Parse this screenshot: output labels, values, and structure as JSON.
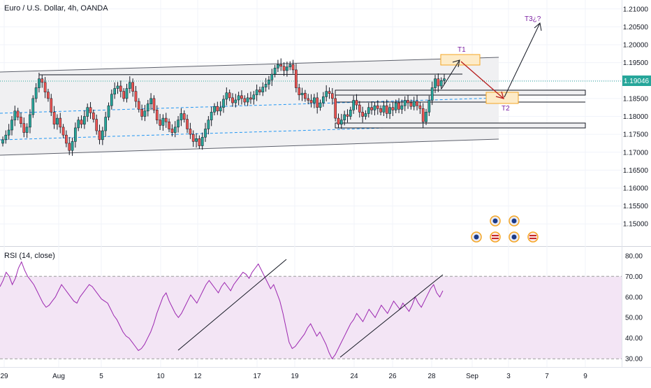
{
  "header": {
    "title": "Euro / U.S. Dollar, 4h, OANDA"
  },
  "price_badge": "1.19046",
  "rsi_title": "RSI (14, close)",
  "targets": {
    "t1": "T1",
    "t2": "T2",
    "t3": "T3¿?"
  },
  "colors": {
    "up": "#26a69a",
    "down": "#ef5350",
    "price_line": "#26a69a",
    "channel": "#5d606b",
    "channel_fill": "#f0f0f2",
    "rsi_line": "#9c27b0",
    "rsi_band": "#f3e5f5",
    "target_box": "#f5a623",
    "target_text": "#7b1fa2",
    "arrow_red": "#b71c1c",
    "dashed": "#2196f3"
  },
  "chart_data": [
    {
      "type": "candlestick",
      "title": "Euro / U.S. Dollar, 4h, OANDA",
      "interval": "4h",
      "ylim": [
        1.1438,
        1.2125
      ],
      "y_ticks": [
        "1.21000",
        "1.20500",
        "1.20000",
        "1.19500",
        "1.19000",
        "1.18500",
        "1.18000",
        "1.17500",
        "1.17000",
        "1.16500",
        "1.16000",
        "1.15500",
        "1.15000"
      ],
      "x_ticks": [
        "29",
        "Aug",
        "5",
        "10",
        "12",
        "17",
        "19",
        "24",
        "26",
        "28",
        "Sep",
        "3",
        "7",
        "9"
      ],
      "last_price": 1.19046,
      "closes": [
        1.1735,
        1.1748,
        1.1762,
        1.179,
        1.1815,
        1.1798,
        1.178,
        1.1755,
        1.177,
        1.1805,
        1.185,
        1.188,
        1.1905,
        1.1895,
        1.1868,
        1.185,
        1.1812,
        1.1778,
        1.1795,
        1.177,
        1.1748,
        1.1725,
        1.1705,
        1.173,
        1.1768,
        1.179,
        1.1778,
        1.18,
        1.1825,
        1.181,
        1.1792,
        1.176,
        1.1735,
        1.176,
        1.1798,
        1.183,
        1.1862,
        1.1878,
        1.1885,
        1.187,
        1.185,
        1.1878,
        1.1895,
        1.187,
        1.1842,
        1.182,
        1.18,
        1.1815,
        1.1835,
        1.185,
        1.1818,
        1.179,
        1.1775,
        1.1795,
        1.1785,
        1.1765,
        1.1755,
        1.177,
        1.179,
        1.1808,
        1.1792,
        1.1765,
        1.175,
        1.173,
        1.1738,
        1.1718,
        1.1742,
        1.1765,
        1.179,
        1.1812,
        1.1828,
        1.1815,
        1.1825,
        1.1848,
        1.1866,
        1.1852,
        1.1838,
        1.1846,
        1.1858,
        1.185,
        1.184,
        1.1852,
        1.1848,
        1.186,
        1.1874,
        1.1868,
        1.1882,
        1.189,
        1.1902,
        1.1918,
        1.1935,
        1.1945,
        1.194,
        1.1928,
        1.1938,
        1.1945,
        1.193,
        1.188,
        1.186,
        1.1865,
        1.185,
        1.1845,
        1.1838,
        1.1852,
        1.1825,
        1.1838,
        1.1855,
        1.187,
        1.1864,
        1.185,
        1.1795,
        1.1778,
        1.179,
        1.1805,
        1.18,
        1.1818,
        1.1845,
        1.1832,
        1.1812,
        1.18,
        1.1808,
        1.1825,
        1.1818,
        1.183,
        1.1822,
        1.1812,
        1.183,
        1.1808,
        1.1825,
        1.1818,
        1.1838,
        1.182,
        1.183,
        1.1845,
        1.1838,
        1.1828,
        1.1842,
        1.183,
        1.1822,
        1.1785,
        1.1812,
        1.1845,
        1.188,
        1.1905,
        1.1885,
        1.19,
        1.1905
      ],
      "annotations": [
        "T1",
        "T2",
        "T3¿?"
      ]
    },
    {
      "type": "line",
      "title": "RSI (14, close)",
      "ylim": [
        26,
        84
      ],
      "y_ticks": [
        "80.00",
        "70.00",
        "60.00",
        "50.00",
        "40.00",
        "30.00"
      ],
      "band": [
        30,
        70
      ],
      "series": [
        {
          "values": [
            65,
            68,
            72,
            70,
            66,
            69,
            74,
            77,
            73,
            70,
            68,
            66,
            63,
            60,
            57,
            55,
            56,
            58,
            60,
            63,
            66,
            64,
            62,
            60,
            58,
            57,
            60,
            62,
            64,
            66,
            65,
            63,
            61,
            59,
            58,
            57,
            54,
            51,
            49,
            46,
            43,
            41,
            40,
            38,
            36,
            34,
            35,
            37,
            40,
            43,
            47,
            52,
            56,
            60,
            62,
            58,
            55,
            52,
            50,
            52,
            55,
            58,
            61,
            59,
            57,
            60,
            63,
            66,
            68,
            66,
            64,
            62,
            65,
            67,
            65,
            63,
            66,
            68,
            70,
            72,
            71,
            69,
            72,
            74,
            76,
            73,
            70,
            67,
            64,
            66,
            62,
            58,
            52,
            45,
            38,
            35,
            36,
            38,
            40,
            42,
            45,
            47,
            44,
            41,
            43,
            40,
            37,
            33,
            30,
            32,
            35,
            38,
            41,
            44,
            47,
            49,
            52,
            50,
            48,
            51,
            54,
            52,
            50,
            53,
            56,
            54,
            52,
            55,
            58,
            56,
            54,
            57,
            55,
            53,
            56,
            60,
            57,
            55,
            58,
            61,
            64,
            66,
            62,
            60,
            63
          ]
        }
      ]
    }
  ]
}
